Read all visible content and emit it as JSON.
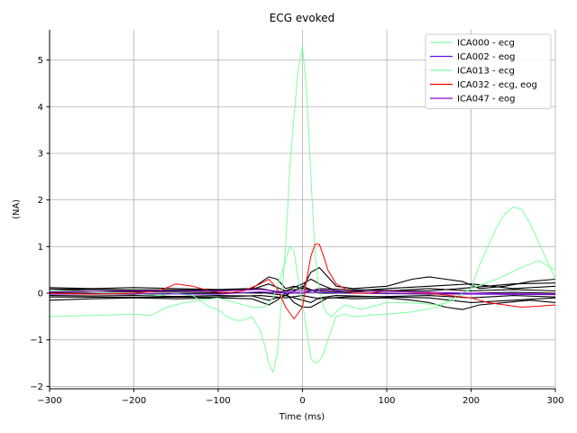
{
  "chart_data": {
    "type": "line",
    "title": "ECG evoked",
    "xlabel": "Time (ms)",
    "ylabel": "(NA)",
    "xlim": [
      -300,
      300
    ],
    "ylim": [
      -2.05,
      5.65
    ],
    "xticks": [
      -300,
      -200,
      -100,
      0,
      100,
      200,
      300
    ],
    "xtick_labels": [
      "−300",
      "−200",
      "−100",
      "0",
      "100",
      "200",
      "300"
    ],
    "yticks": [
      -2,
      -1,
      0,
      1,
      2,
      3,
      4,
      5
    ],
    "ytick_labels": [
      "−2",
      "−1",
      "0",
      "1",
      "2",
      "3",
      "4",
      "5"
    ],
    "grid": true,
    "legend_position": "top-right",
    "series": [
      {
        "name": "ICA000 - ecg",
        "color": "#7fffa0",
        "legend": true,
        "x": [
          -300,
          -270,
          -240,
          -210,
          -190,
          -170,
          -150,
          -130,
          -110,
          -100,
          -90,
          -80,
          -70,
          -60,
          -50,
          -45,
          -40,
          -35,
          -30,
          -25,
          -20,
          -15,
          -10,
          -5,
          0,
          5,
          10,
          15,
          20,
          25,
          30,
          35,
          40,
          50,
          60,
          70,
          80,
          90,
          100,
          120,
          140,
          160,
          180,
          200,
          210,
          220,
          230,
          240,
          250,
          260,
          270,
          280,
          290,
          300
        ],
        "y": [
          0.05,
          0.05,
          0.02,
          0.0,
          -0.02,
          -0.05,
          0.0,
          -0.05,
          -0.3,
          -0.35,
          -0.5,
          -0.58,
          -0.58,
          -0.5,
          -0.8,
          -1.1,
          -1.5,
          -1.7,
          -1.3,
          -0.2,
          1.0,
          2.7,
          3.8,
          4.8,
          5.3,
          4.3,
          2.5,
          0.8,
          0.05,
          -0.3,
          -0.45,
          -0.5,
          -0.4,
          -0.25,
          -0.3,
          -0.35,
          -0.3,
          -0.25,
          -0.2,
          -0.2,
          -0.22,
          -0.25,
          -0.15,
          0.1,
          0.6,
          1.0,
          1.4,
          1.7,
          1.85,
          1.8,
          1.5,
          1.1,
          0.7,
          0.3
        ]
      },
      {
        "name": "ICA002 - eog",
        "color": "#6a10e0",
        "legend": true,
        "x": [
          -300,
          -200,
          -100,
          -50,
          -20,
          0,
          20,
          50,
          100,
          200,
          300
        ],
        "y": [
          -0.02,
          -0.01,
          -0.02,
          0.03,
          0.0,
          0.01,
          0.02,
          0.0,
          -0.01,
          -0.02,
          -0.03
        ]
      },
      {
        "name": "ICA013 - ecg",
        "color": "#7fffa0",
        "legend": true,
        "x": [
          -300,
          -250,
          -200,
          -180,
          -160,
          -140,
          -120,
          -100,
          -80,
          -60,
          -45,
          -35,
          -25,
          -15,
          -10,
          -5,
          0,
          5,
          10,
          15,
          20,
          25,
          30,
          40,
          50,
          60,
          70,
          80,
          100,
          130,
          160,
          200,
          230,
          260,
          280,
          300
        ],
        "y": [
          -0.5,
          -0.48,
          -0.45,
          -0.48,
          -0.3,
          -0.2,
          -0.15,
          -0.1,
          -0.2,
          -0.3,
          -0.3,
          -0.1,
          0.4,
          1.0,
          0.9,
          0.3,
          -0.2,
          -0.8,
          -1.4,
          -1.5,
          -1.45,
          -1.3,
          -1.0,
          -0.5,
          -0.45,
          -0.5,
          -0.5,
          -0.47,
          -0.45,
          -0.4,
          -0.3,
          0.1,
          0.3,
          0.55,
          0.7,
          0.5
        ]
      },
      {
        "name": "ICA032 - ecg, eog",
        "color": "#ff0000",
        "legend": true,
        "x": [
          -300,
          -250,
          -200,
          -170,
          -150,
          -130,
          -110,
          -90,
          -70,
          -50,
          -40,
          -30,
          -20,
          -10,
          0,
          5,
          10,
          15,
          20,
          25,
          30,
          40,
          50,
          60,
          80,
          100,
          150,
          200,
          220,
          240,
          260,
          280,
          300
        ],
        "y": [
          0.0,
          -0.02,
          0.0,
          0.05,
          0.2,
          0.15,
          0.05,
          0.0,
          0.05,
          0.2,
          0.3,
          0.1,
          -0.3,
          -0.55,
          -0.3,
          0.3,
          0.8,
          1.05,
          1.05,
          0.8,
          0.5,
          0.2,
          0.1,
          0.0,
          0.0,
          0.05,
          0.0,
          -0.1,
          -0.2,
          -0.25,
          -0.3,
          -0.28,
          -0.25
        ]
      },
      {
        "name": "ICA047 - eog",
        "color": "#9400d3",
        "legend": true,
        "x": [
          -300,
          -200,
          -100,
          -50,
          -20,
          0,
          20,
          50,
          100,
          200,
          300
        ],
        "y": [
          0.03,
          0.05,
          0.05,
          0.08,
          0.02,
          0.05,
          0.07,
          0.05,
          0.04,
          0.0,
          -0.02
        ]
      },
      {
        "color": "#000000",
        "legend": false,
        "x": [
          -300,
          -250,
          -200,
          -150,
          -100,
          -60,
          -40,
          -30,
          -20,
          -10,
          0,
          10,
          20,
          30,
          40,
          60,
          100,
          130,
          150,
          170,
          190,
          210,
          240,
          270,
          300
        ],
        "y": [
          0.12,
          0.1,
          0.12,
          0.1,
          0.08,
          0.1,
          0.35,
          0.3,
          0.1,
          0.15,
          0.1,
          0.45,
          0.55,
          0.35,
          0.15,
          0.1,
          0.15,
          0.3,
          0.35,
          0.3,
          0.25,
          0.1,
          0.15,
          0.25,
          0.3
        ]
      },
      {
        "color": "#000000",
        "legend": false,
        "x": [
          -300,
          -250,
          -200,
          -150,
          -100,
          -60,
          -40,
          -30,
          -20,
          -10,
          0,
          10,
          20,
          30,
          40,
          60,
          100,
          130,
          150,
          170,
          190,
          210,
          240,
          270,
          300
        ],
        "y": [
          -0.15,
          -0.12,
          -0.1,
          -0.12,
          -0.1,
          -0.12,
          -0.25,
          -0.15,
          0.0,
          -0.2,
          -0.3,
          -0.3,
          -0.2,
          -0.1,
          -0.1,
          -0.12,
          -0.1,
          -0.15,
          -0.2,
          -0.3,
          -0.35,
          -0.25,
          -0.2,
          -0.15,
          -0.2
        ]
      },
      {
        "color": "#000000",
        "legend": false,
        "x": [
          -300,
          -250,
          -200,
          -150,
          -100,
          -60,
          -40,
          -20,
          0,
          10,
          20,
          40,
          60,
          100,
          150,
          200,
          250,
          300
        ],
        "y": [
          0.05,
          0.08,
          0.06,
          0.05,
          0.05,
          0.08,
          0.2,
          0.05,
          0.2,
          0.3,
          0.2,
          0.05,
          0.05,
          0.1,
          0.15,
          0.2,
          0.1,
          0.15
        ]
      },
      {
        "color": "#000000",
        "legend": false,
        "x": [
          -300,
          -250,
          -200,
          -150,
          -100,
          -60,
          -40,
          -20,
          0,
          10,
          20,
          40,
          60,
          100,
          150,
          200,
          250,
          300
        ],
        "y": [
          -0.05,
          -0.06,
          -0.05,
          -0.07,
          -0.05,
          -0.06,
          -0.15,
          -0.05,
          -0.15,
          -0.2,
          -0.1,
          -0.05,
          -0.06,
          -0.08,
          -0.1,
          -0.2,
          -0.15,
          -0.1
        ]
      },
      {
        "color": "#000000",
        "legend": false,
        "x": [
          -300,
          -200,
          -100,
          -50,
          -20,
          0,
          20,
          50,
          100,
          150,
          200,
          250,
          300
        ],
        "y": [
          0.02,
          0.03,
          0.02,
          0.0,
          0.05,
          0.1,
          0.05,
          0.02,
          0.05,
          0.1,
          0.05,
          0.08,
          0.05
        ]
      },
      {
        "color": "#000000",
        "legend": false,
        "x": [
          -300,
          -200,
          -100,
          -50,
          -20,
          0,
          20,
          50,
          100,
          150,
          200,
          250,
          300
        ],
        "y": [
          0.09,
          0.07,
          0.07,
          0.1,
          0.0,
          0.0,
          0.1,
          0.08,
          0.06,
          0.05,
          0.12,
          0.2,
          0.22
        ]
      },
      {
        "color": "#000000",
        "legend": false,
        "x": [
          -300,
          -200,
          -100,
          -50,
          -20,
          0,
          20,
          50,
          100,
          150,
          200,
          250,
          300
        ],
        "y": [
          -0.08,
          -0.09,
          -0.08,
          -0.05,
          -0.1,
          -0.05,
          -0.12,
          -0.08,
          -0.07,
          -0.05,
          -0.1,
          -0.05,
          -0.08
        ]
      },
      {
        "color": "#000000",
        "legend": false,
        "x": [
          -300,
          -200,
          -100,
          -50,
          -20,
          0,
          20,
          50,
          100,
          150,
          200,
          250,
          300
        ],
        "y": [
          0.0,
          -0.02,
          0.0,
          0.02,
          -0.05,
          0.15,
          0.0,
          0.0,
          0.0,
          -0.02,
          0.0,
          0.02,
          0.0
        ]
      }
    ]
  }
}
